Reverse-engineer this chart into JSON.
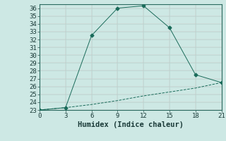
{
  "x": [
    0,
    3,
    6,
    9,
    12,
    15,
    18,
    21
  ],
  "y_main": [
    23,
    23.3,
    32.5,
    36.0,
    36.3,
    33.5,
    27.5,
    26.5
  ],
  "y_base": [
    23,
    23.3,
    23.7,
    24.2,
    24.8,
    25.3,
    25.8,
    26.5
  ],
  "line_color": "#1a6b5a",
  "bg_color": "#cde8e4",
  "grid_major_color": "#b8d8d4",
  "grid_minor_color": "#d4ecec",
  "xlabel": "Humidex (Indice chaleur)",
  "ylim": [
    23,
    36.5
  ],
  "xlim": [
    0,
    21
  ],
  "yticks": [
    23,
    24,
    25,
    26,
    27,
    28,
    29,
    30,
    31,
    32,
    33,
    34,
    35,
    36
  ],
  "xticks": [
    0,
    3,
    6,
    9,
    12,
    15,
    18,
    21
  ],
  "font_size": 6.5,
  "xlabel_fontsize": 7.5
}
